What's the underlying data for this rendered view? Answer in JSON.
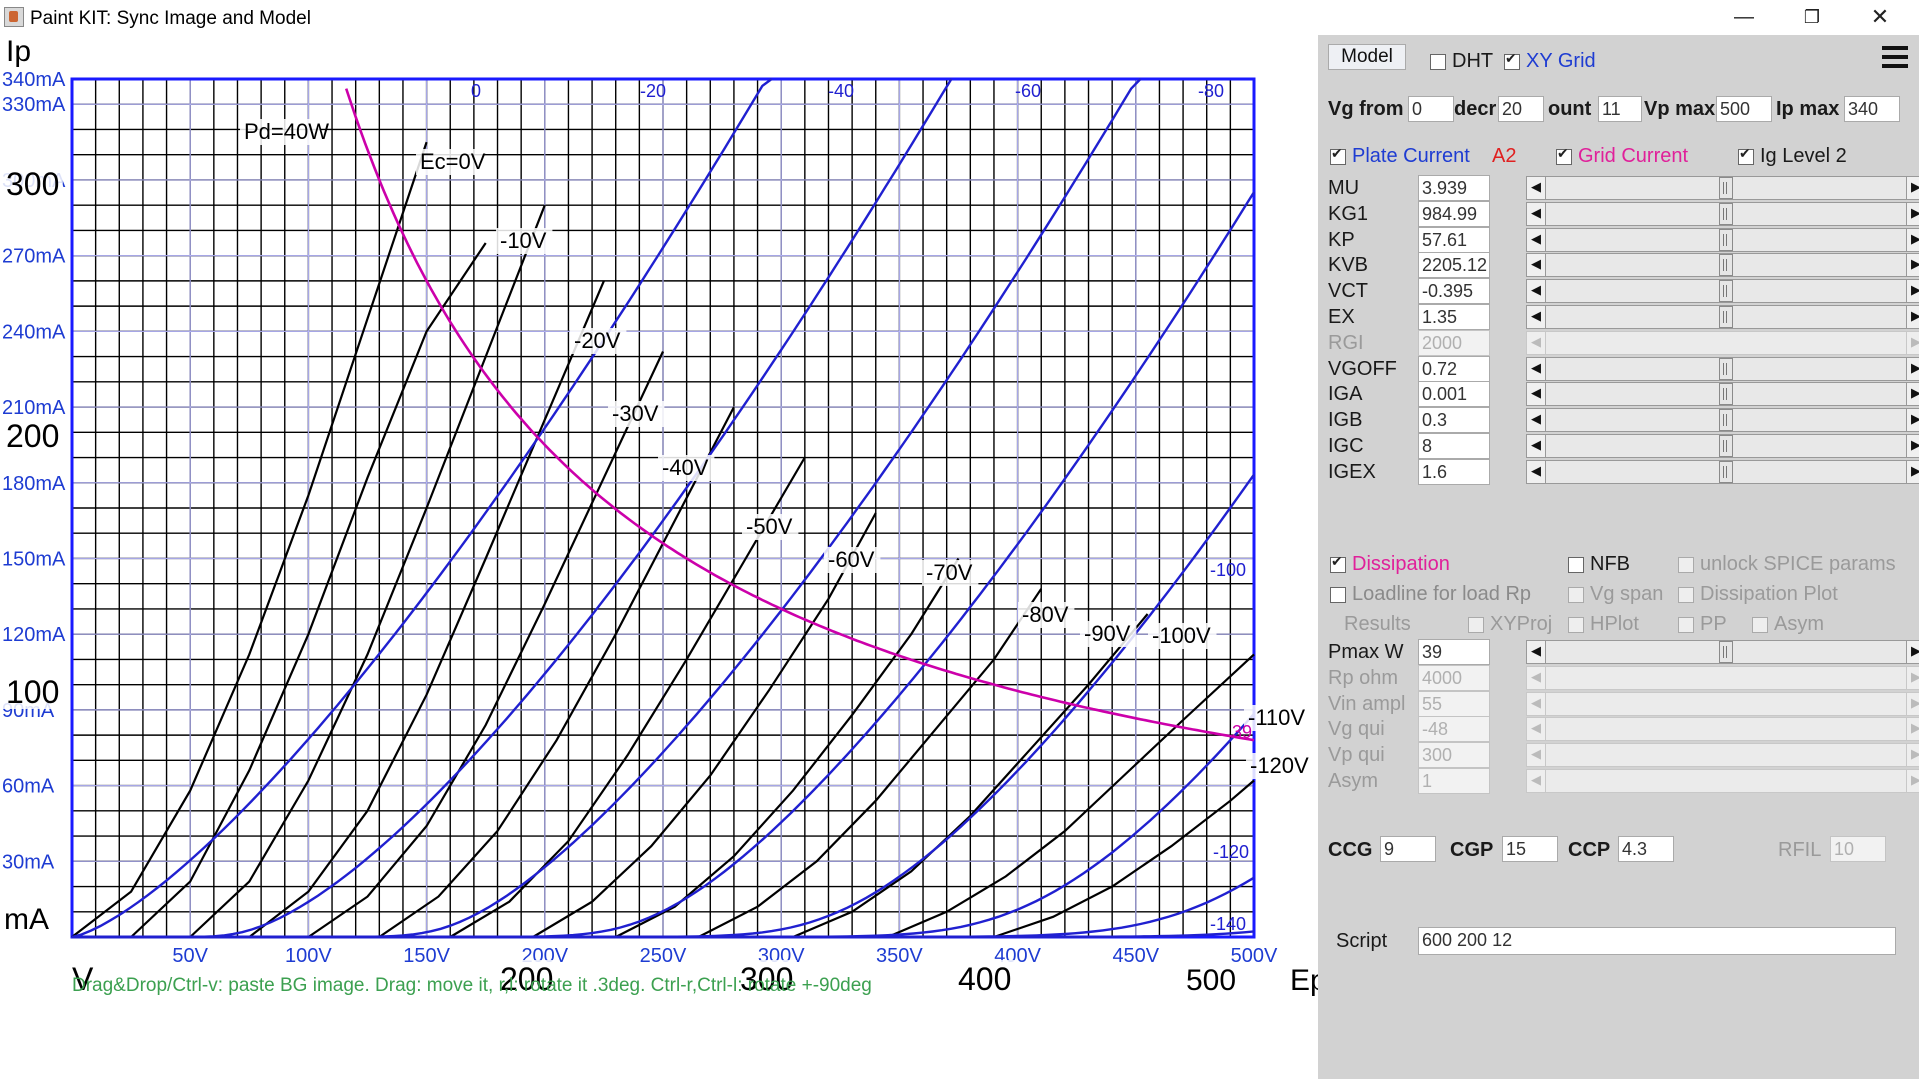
{
  "window": {
    "title": "Paint KIT: Sync Image and Model",
    "minimize": "—",
    "maximize": "❐",
    "close": "✕"
  },
  "plot": {
    "status_hint": "Drag&Drop/Ctrl-v: paste BG image. Drag: move it, r,l: rotate it .3deg. Ctrl-r,Ctrl-l: rotate +-90deg",
    "colors": {
      "grid_blue": "#1a1aff",
      "curve_black": "#000000",
      "model_blue": "#2020d0",
      "dissipation_magenta": "#cc00aa",
      "axis_label_blue": "#1e3cd2",
      "hint_green": "#3ca050"
    }
  },
  "chart_data": {
    "type": "line",
    "title": "",
    "xlabel": "Ep",
    "ylabel": "Ip",
    "xlim": [
      0,
      500
    ],
    "ylim": [
      0,
      340
    ],
    "grid": true,
    "x_ticks": [
      "50V",
      "100V",
      "150V",
      "200V",
      "250V",
      "300V",
      "350V",
      "400V",
      "450V",
      "500V"
    ],
    "y_ticks": [
      "30mA",
      "60mA",
      "90mA",
      "120mA",
      "150mA",
      "180mA",
      "210mA",
      "240mA",
      "270mA",
      "300mA",
      "330mA",
      "340mA"
    ],
    "background_image_labels": [
      "Ip",
      "300",
      "200",
      "100",
      "mA",
      "V",
      "200",
      "300",
      "400",
      "500",
      "Ep",
      "Pd=40W",
      "Ec=0V",
      "-10V",
      "-20V",
      "-30V",
      "-40V",
      "-50V",
      "-60V",
      "-70V",
      "-80V",
      "-90V",
      "-100V",
      "-110V",
      "-120V"
    ],
    "model_curve_labels": [
      "0",
      "-20",
      "-40",
      "-60",
      "-80",
      "-100",
      "-120",
      "-140"
    ],
    "dissipation_label": "39",
    "dissipation_watts": 39,
    "model_series": [
      {
        "name": "0",
        "vg": 0
      },
      {
        "name": "-20",
        "vg": -20
      },
      {
        "name": "-40",
        "vg": -40
      },
      {
        "name": "-60",
        "vg": -60
      },
      {
        "name": "-80",
        "vg": -80
      },
      {
        "name": "-100",
        "vg": -100
      },
      {
        "name": "-120",
        "vg": -120
      },
      {
        "name": "-140",
        "vg": -140
      }
    ],
    "image_series": [
      {
        "name": "Ec=0V",
        "points": [
          [
            0,
            0
          ],
          [
            25,
            18
          ],
          [
            50,
            58
          ],
          [
            75,
            112
          ],
          [
            100,
            175
          ],
          [
            125,
            245
          ],
          [
            150,
            315
          ]
        ]
      },
      {
        "name": "-10V",
        "points": [
          [
            25,
            0
          ],
          [
            50,
            22
          ],
          [
            75,
            66
          ],
          [
            100,
            120
          ],
          [
            125,
            182
          ],
          [
            150,
            240
          ],
          [
            175,
            275
          ]
        ]
      },
      {
        "name": "-20V",
        "points": [
          [
            50,
            0
          ],
          [
            75,
            22
          ],
          [
            100,
            62
          ],
          [
            125,
            112
          ],
          [
            150,
            170
          ],
          [
            175,
            230
          ],
          [
            200,
            290
          ]
        ]
      },
      {
        "name": "-30V",
        "points": [
          [
            75,
            0
          ],
          [
            100,
            18
          ],
          [
            125,
            50
          ],
          [
            150,
            96
          ],
          [
            175,
            150
          ],
          [
            200,
            205
          ],
          [
            225,
            260
          ]
        ]
      },
      {
        "name": "-40V",
        "points": [
          [
            100,
            0
          ],
          [
            125,
            16
          ],
          [
            150,
            44
          ],
          [
            175,
            84
          ],
          [
            200,
            132
          ],
          [
            225,
            182
          ],
          [
            250,
            232
          ]
        ]
      },
      {
        "name": "-50V",
        "points": [
          [
            130,
            0
          ],
          [
            155,
            16
          ],
          [
            180,
            42
          ],
          [
            205,
            78
          ],
          [
            230,
            120
          ],
          [
            255,
            165
          ],
          [
            280,
            210
          ]
        ]
      },
      {
        "name": "-60V",
        "points": [
          [
            160,
            0
          ],
          [
            185,
            14
          ],
          [
            210,
            38
          ],
          [
            235,
            72
          ],
          [
            260,
            110
          ],
          [
            285,
            150
          ],
          [
            310,
            190
          ]
        ]
      },
      {
        "name": "-70V",
        "points": [
          [
            195,
            0
          ],
          [
            220,
            14
          ],
          [
            245,
            36
          ],
          [
            270,
            64
          ],
          [
            295,
            98
          ],
          [
            320,
            134
          ],
          [
            340,
            168
          ]
        ]
      },
      {
        "name": "-80V",
        "points": [
          [
            230,
            0
          ],
          [
            255,
            12
          ],
          [
            280,
            32
          ],
          [
            305,
            58
          ],
          [
            330,
            88
          ],
          [
            355,
            120
          ],
          [
            375,
            150
          ]
        ]
      },
      {
        "name": "-90V",
        "points": [
          [
            265,
            0
          ],
          [
            290,
            12
          ],
          [
            315,
            30
          ],
          [
            340,
            54
          ],
          [
            365,
            82
          ],
          [
            390,
            110
          ],
          [
            410,
            138
          ]
        ]
      },
      {
        "name": "-100V",
        "points": [
          [
            305,
            0
          ],
          [
            330,
            10
          ],
          [
            355,
            26
          ],
          [
            380,
            48
          ],
          [
            405,
            74
          ],
          [
            430,
            100
          ],
          [
            455,
            128
          ]
        ]
      },
      {
        "name": "-110V",
        "points": [
          [
            345,
            0
          ],
          [
            370,
            10
          ],
          [
            395,
            24
          ],
          [
            420,
            42
          ],
          [
            445,
            64
          ],
          [
            470,
            86
          ],
          [
            500,
            112
          ]
        ]
      },
      {
        "name": "-120V",
        "points": [
          [
            390,
            0
          ],
          [
            415,
            8
          ],
          [
            440,
            20
          ],
          [
            465,
            36
          ],
          [
            490,
            54
          ],
          [
            500,
            62
          ]
        ]
      }
    ]
  },
  "panel": {
    "model_label": "Model",
    "dht_label": "DHT",
    "dht_checked": false,
    "xygrid_label": "XY Grid",
    "xygrid_checked": true,
    "menu_icon": "hamburger-menu",
    "vg_from_label": "Vg from",
    "vg_from": "0",
    "decr_label": "decr",
    "decr": "20",
    "count_label": "ount",
    "count": "11",
    "vpmax_label": "Vp max",
    "vpmax": "500",
    "ipmax_label": "Ip max",
    "ipmax": "340",
    "plate_current_label": "Plate Current",
    "plate_current_checked": true,
    "a2_label": "A2",
    "grid_current_label": "Grid Current",
    "grid_current_checked": true,
    "ig_level2_label": "Ig Level 2",
    "ig_level2_checked": true,
    "params": [
      {
        "label": "MU",
        "value": "3.939",
        "enabled": true,
        "level": 0.5
      },
      {
        "label": "KG1",
        "value": "984.99",
        "enabled": true,
        "level": 0.5
      },
      {
        "label": "KP",
        "value": "57.61",
        "enabled": true,
        "level": 0.5
      },
      {
        "label": "KVB",
        "value": "2205.12",
        "enabled": true,
        "level": 0.5
      },
      {
        "label": "VCT",
        "value": "-0.395",
        "enabled": true,
        "level": 0.5
      },
      {
        "label": "EX",
        "value": "1.35",
        "enabled": true,
        "level": 0.5
      },
      {
        "label": "RGI",
        "value": "2000",
        "enabled": false,
        "level": null
      },
      {
        "label": "VGOFF",
        "value": "0.72",
        "enabled": true,
        "level": 0.5
      },
      {
        "label": "IGA",
        "value": "0.001",
        "enabled": true,
        "level": 0.5
      },
      {
        "label": "IGB",
        "value": "0.3",
        "enabled": true,
        "level": 0.5
      },
      {
        "label": "IGC",
        "value": "8",
        "enabled": true,
        "level": 0.5
      },
      {
        "label": "IGEX",
        "value": "1.6",
        "enabled": true,
        "level": 0.5
      }
    ],
    "dissipation_label": "Dissipation",
    "dissipation_checked": true,
    "nfb_label": "NFB",
    "nfb_checked": false,
    "unlock_label": "unlock SPICE params",
    "unlock_checked": false,
    "loadline_label": "Loadline for load Rp",
    "loadline_checked": false,
    "vgspan_label": "Vg span",
    "vgspan_checked": false,
    "dissplot_label": "Dissipation Plot",
    "dissplot_checked": false,
    "results_label": "Results",
    "xyproj_label": "XYProj",
    "hplot_label": "HPlot",
    "pp_label": "PP",
    "asym_cb_label": "Asym",
    "lower_params": [
      {
        "label": "Pmax W",
        "value": "39",
        "enabled": true,
        "level": 0.5
      },
      {
        "label": "Rp ohm",
        "value": "4000",
        "enabled": false,
        "level": null
      },
      {
        "label": "Vin ampl",
        "value": "55",
        "enabled": false,
        "level": null
      },
      {
        "label": "Vg qui",
        "value": "-48",
        "enabled": false,
        "level": null
      },
      {
        "label": "Vp qui",
        "value": "300",
        "enabled": false,
        "level": null
      },
      {
        "label": "Asym",
        "value": "1",
        "enabled": false,
        "level": null
      }
    ],
    "ccg_label": "CCG",
    "ccg": "9",
    "cgp_label": "CGP",
    "cgp": "15",
    "ccp_label": "CCP",
    "ccp": "4.3",
    "rfil_label": "RFIL",
    "rfil": "10",
    "script_label": "Script",
    "script": "600 200 12"
  }
}
